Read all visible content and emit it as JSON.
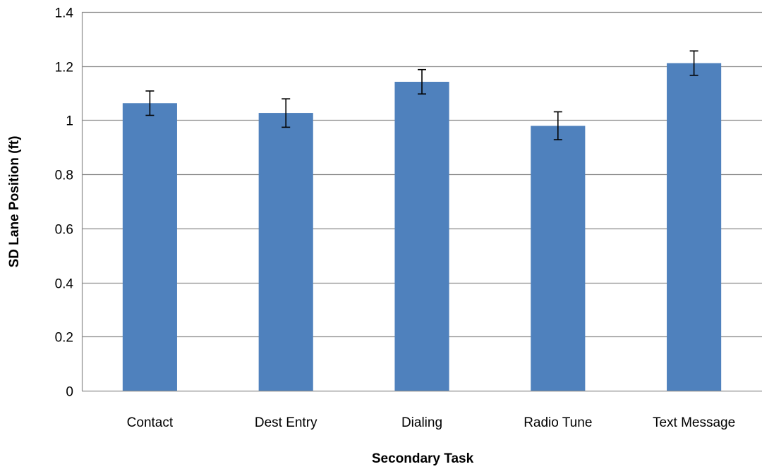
{
  "chart_data": {
    "type": "bar",
    "title": "",
    "xlabel": "Secondary Task",
    "ylabel": "SD Lane Position (ft)",
    "ylim": [
      0,
      1.4
    ],
    "yticks": [
      0,
      0.2,
      0.4,
      0.6,
      0.8,
      1,
      1.2,
      1.4
    ],
    "ytick_labels": [
      "0",
      "0.2",
      "0.4",
      "0.6",
      "0.8",
      "1",
      "1.2",
      "1.4"
    ],
    "grid": true,
    "legend": "none",
    "categories": [
      "Contact",
      "Dest Entry",
      "Dialing",
      "Radio Tune",
      "Text Message"
    ],
    "values": [
      1.063,
      1.027,
      1.142,
      0.979,
      1.211
    ],
    "error_low": [
      1.018,
      0.974,
      1.097,
      0.928,
      1.166
    ],
    "error_high": [
      1.108,
      1.079,
      1.187,
      1.031,
      1.256
    ],
    "colors": {
      "bar": "#4F81BD",
      "grid": "#8C8C8C",
      "axis": "#8C8C8C",
      "error_bar": "#000000"
    }
  }
}
